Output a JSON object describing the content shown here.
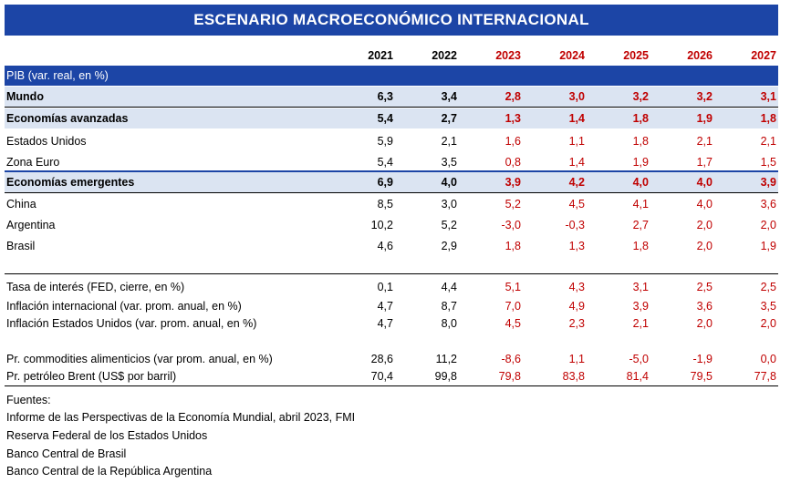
{
  "title": "ESCENARIO MACROECONÓMICO INTERNACIONAL",
  "years": [
    "2021",
    "2022",
    "2023",
    "2024",
    "2025",
    "2026",
    "2027"
  ],
  "section_label": "PIB (var. real, en %)",
  "rows": [
    {
      "label": "Mundo",
      "values": [
        "6,3",
        "3,4",
        "2,8",
        "3,0",
        "3,2",
        "3,2",
        "3,1"
      ]
    },
    {
      "label": "Economías avanzadas",
      "values": [
        "5,4",
        "2,7",
        "1,3",
        "1,4",
        "1,8",
        "1,9",
        "1,8"
      ]
    },
    {
      "label": "Estados Unidos",
      "values": [
        "5,9",
        "2,1",
        "1,6",
        "1,1",
        "1,8",
        "2,1",
        "2,1"
      ]
    },
    {
      "label": "Zona Euro",
      "values": [
        "5,4",
        "3,5",
        "0,8",
        "1,4",
        "1,9",
        "1,7",
        "1,5"
      ]
    },
    {
      "label": "Economías emergentes",
      "values": [
        "6,9",
        "4,0",
        "3,9",
        "4,2",
        "4,0",
        "4,0",
        "3,9"
      ]
    },
    {
      "label": "China",
      "values": [
        "8,5",
        "3,0",
        "5,2",
        "4,5",
        "4,1",
        "4,0",
        "3,6"
      ]
    },
    {
      "label": "Argentina",
      "values": [
        "10,2",
        "5,2",
        "-3,0",
        "-0,3",
        "2,7",
        "2,0",
        "2,0"
      ]
    },
    {
      "label": "Brasil",
      "values": [
        "4,6",
        "2,9",
        "1,8",
        "1,3",
        "1,8",
        "2,0",
        "1,9"
      ]
    },
    {
      "label": "Tasa de interés (FED, cierre, en %)",
      "values": [
        "0,1",
        "4,4",
        "5,1",
        "4,3",
        "3,1",
        "2,5",
        "2,5"
      ]
    },
    {
      "label": "Inflación internacional (var. prom. anual, en %)",
      "values": [
        "4,7",
        "8,7",
        "7,0",
        "4,9",
        "3,9",
        "3,6",
        "3,5"
      ]
    },
    {
      "label": "Inflación Estados Unidos (var. prom. anual, en %)",
      "values": [
        "4,7",
        "8,0",
        "4,5",
        "2,3",
        "2,1",
        "2,0",
        "2,0"
      ]
    },
    {
      "label": "Pr. commodities alimenticios (var prom. anual, en %)",
      "values": [
        "28,6",
        "11,2",
        "-8,6",
        "1,1",
        "-5,0",
        "-1,9",
        "0,0"
      ]
    },
    {
      "label": "Pr. petróleo Brent (US$ por barril)",
      "values": [
        "70,4",
        "99,8",
        "79,8",
        "83,8",
        "81,4",
        "79,5",
        "77,8"
      ]
    }
  ],
  "sources_label": "Fuentes:",
  "sources": [
    "Informe de las Perspectivas de la Economía Mundial, abril 2023, FMI",
    "Reserva Federal de los Estados Unidos",
    "Banco Central de Brasil",
    "Banco Central de la República Argentina"
  ]
}
